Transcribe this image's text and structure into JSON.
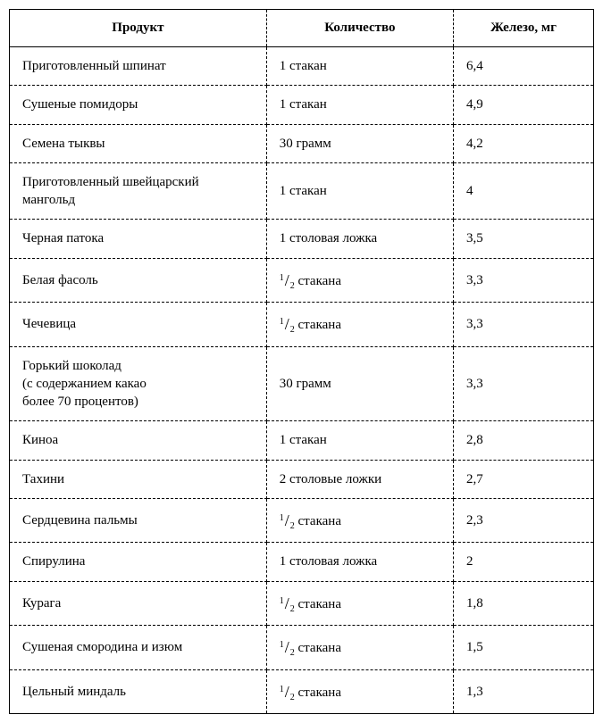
{
  "table": {
    "columns": [
      {
        "label": "Продукт",
        "key": "product"
      },
      {
        "label": "Количество",
        "key": "amount"
      },
      {
        "label": "Железо, мг",
        "key": "iron"
      }
    ],
    "column_widths_pct": [
      44,
      32,
      24
    ],
    "border_color": "#000000",
    "background_color": "#ffffff",
    "header_fontsize": 15,
    "body_fontsize": 15,
    "fraction": {
      "numerator": "1",
      "denominator": "2"
    },
    "rows": [
      {
        "product": "Приготовленный шпинат",
        "amount_type": "plain",
        "amount": "1 стакан",
        "iron": "6,4"
      },
      {
        "product": "Сушеные помидоры",
        "amount_type": "plain",
        "amount": "1 стакан",
        "iron": "4,9"
      },
      {
        "product": "Семена тыквы",
        "amount_type": "plain",
        "amount": "30 грамм",
        "iron": "4,2"
      },
      {
        "product": "Приготовленный швейцарский мангольд",
        "amount_type": "plain",
        "amount": "1 стакан",
        "iron": "4",
        "multiline": true
      },
      {
        "product": "Черная патока",
        "amount_type": "plain",
        "amount": "1 столовая ложка",
        "iron": "3,5"
      },
      {
        "product": "Белая фасоль",
        "amount_type": "half",
        "amount_suffix": " стакана",
        "iron": "3,3"
      },
      {
        "product": "Чечевица",
        "amount_type": "half",
        "amount_suffix": " стакана",
        "iron": "3,3"
      },
      {
        "product": "Горький шоколад\n(с содержанием какао\nболее 70 процентов)",
        "amount_type": "plain",
        "amount": "30 грамм",
        "iron": "3,3",
        "multiline": true
      },
      {
        "product": "Киноа",
        "amount_type": "plain",
        "amount": "1 стакан",
        "iron": "2,8"
      },
      {
        "product": "Тахини",
        "amount_type": "plain",
        "amount": "2 столовые ложки",
        "iron": "2,7"
      },
      {
        "product": "Сердцевина пальмы",
        "amount_type": "half",
        "amount_suffix": " стакана",
        "iron": "2,3"
      },
      {
        "product": "Спирулина",
        "amount_type": "plain",
        "amount": "1 столовая ложка",
        "iron": "2"
      },
      {
        "product": "Курага",
        "amount_type": "half",
        "amount_suffix": " стакана",
        "iron": "1,8"
      },
      {
        "product": "Сушеная смородина и изюм",
        "amount_type": "half",
        "amount_suffix": " стакана",
        "iron": "1,5"
      },
      {
        "product": "Цельный миндаль",
        "amount_type": "half",
        "amount_suffix": " стакана",
        "iron": "1,3"
      }
    ]
  }
}
